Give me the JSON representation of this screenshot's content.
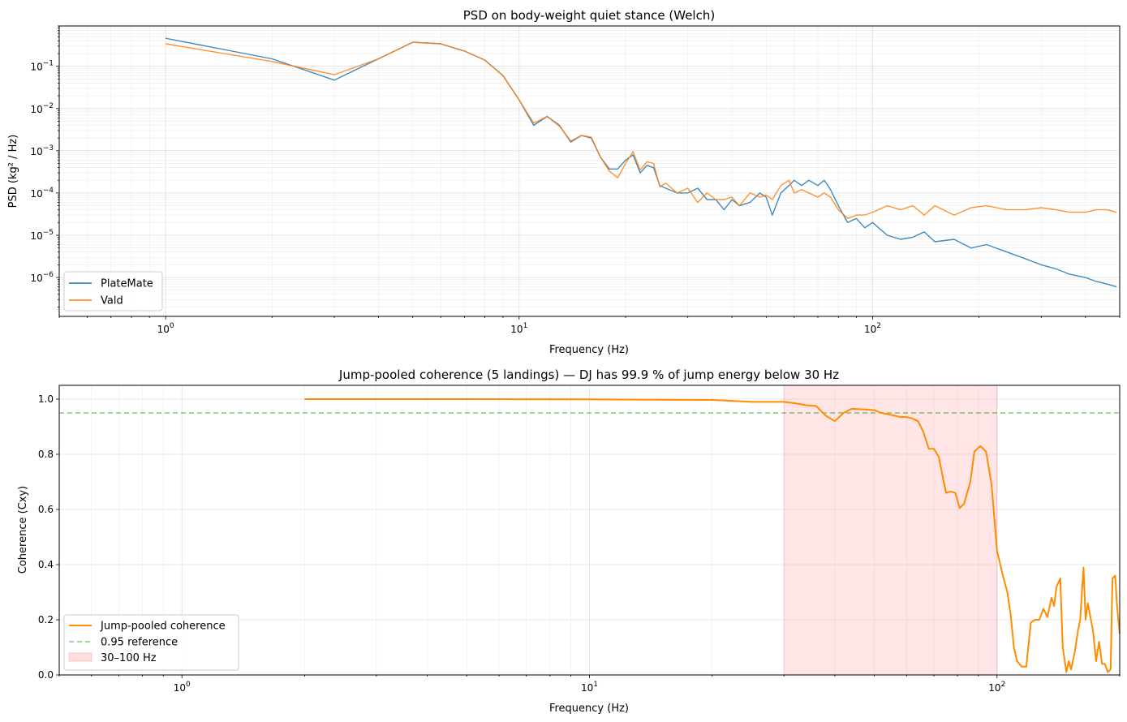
{
  "chart_data": [
    {
      "type": "line",
      "title": "PSD on body-weight quiet stance (Welch)",
      "xlabel": "Frequency (Hz)",
      "ylabel": "PSD (kg² / Hz)",
      "xscale": "log",
      "yscale": "log",
      "xlim": [
        0.5,
        500
      ],
      "ylim": [
        1.2e-07,
        0.9
      ],
      "x_ticks": [
        {
          "value": 1,
          "base": "10",
          "exp": "0"
        },
        {
          "value": 10,
          "base": "10",
          "exp": "1"
        },
        {
          "value": 100,
          "base": "10",
          "exp": "2"
        }
      ],
      "y_ticks": [
        {
          "value": 1e-06,
          "base": "10",
          "exp": "−6"
        },
        {
          "value": 1e-05,
          "base": "10",
          "exp": "−5"
        },
        {
          "value": 0.0001,
          "base": "10",
          "exp": "−4"
        },
        {
          "value": 0.001,
          "base": "10",
          "exp": "−3"
        },
        {
          "value": 0.01,
          "base": "10",
          "exp": "−2"
        },
        {
          "value": 0.1,
          "base": "10",
          "exp": "−1"
        }
      ],
      "grid": true,
      "legend_position": "lower-left",
      "series": [
        {
          "name": "PlateMate",
          "color": "#1f77b4",
          "points": [
            [
              1,
              0.46
            ],
            [
              2,
              0.15
            ],
            [
              3,
              0.047
            ],
            [
              4,
              0.15
            ],
            [
              5,
              0.37
            ],
            [
              6,
              0.34
            ],
            [
              7,
              0.23
            ],
            [
              8,
              0.14
            ],
            [
              9,
              0.06
            ],
            [
              10,
              0.016
            ],
            [
              11,
              0.004
            ],
            [
              12,
              0.0065
            ],
            [
              13,
              0.004
            ],
            [
              14,
              0.0016
            ],
            [
              15,
              0.0023
            ],
            [
              16,
              0.002
            ],
            [
              17,
              0.0007
            ],
            [
              18,
              0.00037
            ],
            [
              19,
              0.00037
            ],
            [
              20,
              0.0006
            ],
            [
              21,
              0.0008
            ],
            [
              22,
              0.0003
            ],
            [
              23,
              0.00045
            ],
            [
              24,
              0.0004
            ],
            [
              25,
              0.00015
            ],
            [
              26,
              0.00013
            ],
            [
              28,
              0.0001
            ],
            [
              30,
              0.0001
            ],
            [
              32,
              0.00013
            ],
            [
              34,
              7e-05
            ],
            [
              36,
              7e-05
            ],
            [
              38,
              4e-05
            ],
            [
              40,
              7e-05
            ],
            [
              42,
              5e-05
            ],
            [
              45,
              6e-05
            ],
            [
              48,
              0.0001
            ],
            [
              50,
              8e-05
            ],
            [
              52,
              3e-05
            ],
            [
              55,
              0.0001
            ],
            [
              58,
              0.00015
            ],
            [
              60,
              0.0002
            ],
            [
              63,
              0.00015
            ],
            [
              66,
              0.0002
            ],
            [
              70,
              0.00015
            ],
            [
              73,
              0.0002
            ],
            [
              76,
              0.00012
            ],
            [
              80,
              5e-05
            ],
            [
              85,
              2e-05
            ],
            [
              90,
              2.5e-05
            ],
            [
              95,
              1.5e-05
            ],
            [
              100,
              2e-05
            ],
            [
              110,
              1e-05
            ],
            [
              120,
              8e-06
            ],
            [
              130,
              9e-06
            ],
            [
              140,
              1.2e-05
            ],
            [
              150,
              7e-06
            ],
            [
              170,
              8e-06
            ],
            [
              190,
              5e-06
            ],
            [
              210,
              6e-06
            ],
            [
              240,
              4e-06
            ],
            [
              270,
              2.8e-06
            ],
            [
              300,
              2e-06
            ],
            [
              330,
              1.6e-06
            ],
            [
              360,
              1.2e-06
            ],
            [
              400,
              1e-06
            ],
            [
              430,
              8e-07
            ],
            [
              460,
              7e-07
            ],
            [
              490,
              6e-07
            ]
          ]
        },
        {
          "name": "Vald",
          "color": "#ff7f0e",
          "points": [
            [
              1,
              0.34
            ],
            [
              2,
              0.13
            ],
            [
              3,
              0.063
            ],
            [
              4,
              0.15
            ],
            [
              5,
              0.37
            ],
            [
              6,
              0.34
            ],
            [
              7,
              0.23
            ],
            [
              8,
              0.14
            ],
            [
              9,
              0.06
            ],
            [
              10,
              0.016
            ],
            [
              11,
              0.0045
            ],
            [
              12,
              0.0065
            ],
            [
              13,
              0.0038
            ],
            [
              14,
              0.0017
            ],
            [
              15,
              0.0023
            ],
            [
              16,
              0.0021
            ],
            [
              17,
              0.0007
            ],
            [
              18,
              0.00033
            ],
            [
              19,
              0.00023
            ],
            [
              20,
              0.0005
            ],
            [
              21,
              0.00095
            ],
            [
              22,
              0.00035
            ],
            [
              23,
              0.00055
            ],
            [
              24,
              0.0005
            ],
            [
              25,
              0.00014
            ],
            [
              26,
              0.00017
            ],
            [
              28,
              0.0001
            ],
            [
              30,
              0.00013
            ],
            [
              32,
              6e-05
            ],
            [
              34,
              0.0001
            ],
            [
              36,
              7e-05
            ],
            [
              38,
              7e-05
            ],
            [
              40,
              8e-05
            ],
            [
              42,
              5e-05
            ],
            [
              45,
              0.0001
            ],
            [
              48,
              8e-05
            ],
            [
              50,
              9e-05
            ],
            [
              52,
              7e-05
            ],
            [
              55,
              0.00015
            ],
            [
              58,
              0.0002
            ],
            [
              60,
              0.0001
            ],
            [
              63,
              0.00012
            ],
            [
              66,
              0.0001
            ],
            [
              70,
              8e-05
            ],
            [
              73,
              0.0001
            ],
            [
              76,
              8e-05
            ],
            [
              80,
              4e-05
            ],
            [
              85,
              2.5e-05
            ],
            [
              90,
              3e-05
            ],
            [
              95,
              3e-05
            ],
            [
              100,
              3.5e-05
            ],
            [
              110,
              5e-05
            ],
            [
              120,
              4e-05
            ],
            [
              130,
              5e-05
            ],
            [
              140,
              3e-05
            ],
            [
              150,
              5e-05
            ],
            [
              170,
              3e-05
            ],
            [
              190,
              4.5e-05
            ],
            [
              210,
              5e-05
            ],
            [
              240,
              4e-05
            ],
            [
              270,
              4e-05
            ],
            [
              300,
              4.5e-05
            ],
            [
              330,
              4e-05
            ],
            [
              360,
              3.5e-05
            ],
            [
              400,
              3.5e-05
            ],
            [
              430,
              4e-05
            ],
            [
              460,
              4e-05
            ],
            [
              490,
              3.5e-05
            ]
          ]
        }
      ]
    },
    {
      "type": "line",
      "title": "Jump-pooled coherence (5 landings) — DJ has 99.9 % of jump energy below 30 Hz",
      "xlabel": "Frequency (Hz)",
      "ylabel": "Coherence (Cxy)",
      "xscale": "log",
      "yscale": "linear",
      "xlim": [
        0.5,
        200
      ],
      "ylim": [
        0,
        1.05
      ],
      "x_ticks": [
        {
          "value": 1,
          "base": "10",
          "exp": "0"
        },
        {
          "value": 10,
          "base": "10",
          "exp": "1"
        },
        {
          "value": 100,
          "base": "10",
          "exp": "2"
        }
      ],
      "y_ticks": [
        {
          "value": 0,
          "label": "0.0"
        },
        {
          "value": 0.2,
          "label": "0.2"
        },
        {
          "value": 0.4,
          "label": "0.4"
        },
        {
          "value": 0.6,
          "label": "0.6"
        },
        {
          "value": 0.8,
          "label": "0.8"
        },
        {
          "value": 1.0,
          "label": "1.0"
        }
      ],
      "grid": true,
      "legend_position": "lower-left",
      "reference_line": {
        "name": "0.95 reference",
        "value": 0.95,
        "color": "#2ca02c"
      },
      "shaded_band": {
        "name": "30–100 Hz",
        "from": 30,
        "to": 100,
        "color": "#ff9999"
      },
      "series": [
        {
          "name": "Jump-pooled coherence",
          "color": "#ff8c00",
          "points": [
            [
              2,
              1.0
            ],
            [
              5,
              1.0
            ],
            [
              10,
              0.999
            ],
            [
              15,
              0.998
            ],
            [
              20,
              0.997
            ],
            [
              25,
              0.99
            ],
            [
              30,
              0.99
            ],
            [
              32,
              0.985
            ],
            [
              34,
              0.978
            ],
            [
              36,
              0.975
            ],
            [
              38,
              0.94
            ],
            [
              40,
              0.92
            ],
            [
              42,
              0.95
            ],
            [
              44,
              0.965
            ],
            [
              47,
              0.963
            ],
            [
              50,
              0.96
            ],
            [
              52,
              0.95
            ],
            [
              54,
              0.945
            ],
            [
              56,
              0.94
            ],
            [
              58,
              0.935
            ],
            [
              60,
              0.935
            ],
            [
              62,
              0.93
            ],
            [
              64,
              0.92
            ],
            [
              66,
              0.88
            ],
            [
              68,
              0.82
            ],
            [
              70,
              0.82
            ],
            [
              72,
              0.79
            ],
            [
              74,
              0.7
            ],
            [
              75,
              0.66
            ],
            [
              77,
              0.665
            ],
            [
              79,
              0.66
            ],
            [
              81,
              0.605
            ],
            [
              83,
              0.62
            ],
            [
              86,
              0.7
            ],
            [
              88,
              0.81
            ],
            [
              91,
              0.83
            ],
            [
              94,
              0.81
            ],
            [
              97,
              0.69
            ],
            [
              100,
              0.45
            ],
            [
              103,
              0.37
            ],
            [
              106,
              0.3
            ],
            [
              108,
              0.22
            ],
            [
              110,
              0.1
            ],
            [
              112,
              0.05
            ],
            [
              115,
              0.03
            ],
            [
              118,
              0.03
            ],
            [
              121,
              0.19
            ],
            [
              124,
              0.2
            ],
            [
              127,
              0.2
            ],
            [
              130,
              0.24
            ],
            [
              133,
              0.21
            ],
            [
              136,
              0.28
            ],
            [
              138,
              0.25
            ],
            [
              140,
              0.32
            ],
            [
              143,
              0.35
            ],
            [
              145,
              0.1
            ],
            [
              148,
              0.01
            ],
            [
              150,
              0.05
            ],
            [
              152,
              0.02
            ],
            [
              155,
              0.08
            ],
            [
              158,
              0.16
            ],
            [
              160,
              0.2
            ],
            [
              163,
              0.39
            ],
            [
              165,
              0.2
            ],
            [
              167,
              0.26
            ],
            [
              170,
              0.2
            ],
            [
              172,
              0.16
            ],
            [
              175,
              0.05
            ],
            [
              178,
              0.12
            ],
            [
              181,
              0.04
            ],
            [
              184,
              0.04
            ],
            [
              187,
              0.01
            ],
            [
              190,
              0.02
            ],
            [
              192,
              0.35
            ],
            [
              195,
              0.36
            ],
            [
              197,
              0.25
            ],
            [
              200,
              0.15
            ]
          ]
        }
      ]
    }
  ]
}
